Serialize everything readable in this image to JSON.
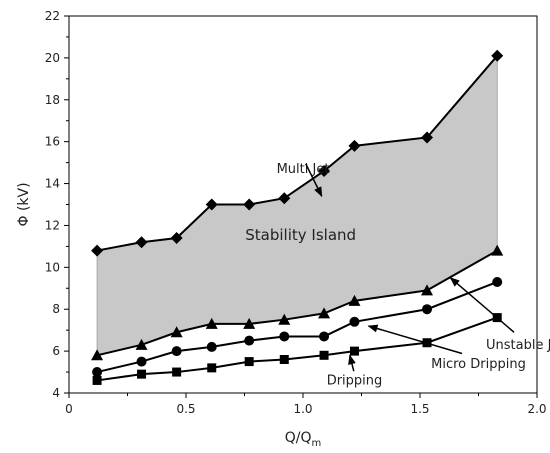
{
  "chart_data": {
    "type": "line",
    "xlabel": "Q/Q",
    "xlabel_sub": "m",
    "ylabel": "Φ (kV)",
    "xlim": [
      0,
      2.0
    ],
    "ylim": [
      4,
      22
    ],
    "x_ticks": [
      0,
      0.5,
      1.0,
      1.5,
      2.0
    ],
    "x_tick_labels": [
      "0",
      "0.5",
      "1.0",
      "1.5",
      "2.0"
    ],
    "y_ticks": [
      4,
      6,
      8,
      10,
      12,
      14,
      16,
      18,
      20,
      22
    ],
    "y_tick_labels": [
      "4",
      "6",
      "8",
      "10",
      "12",
      "14",
      "16",
      "18",
      "20",
      "22"
    ],
    "x": [
      0.12,
      0.31,
      0.46,
      0.61,
      0.77,
      0.92,
      1.09,
      1.22,
      1.53,
      1.83
    ],
    "series": [
      {
        "marker": "diamond",
        "values": [
          10.8,
          11.2,
          11.4,
          13.0,
          13.0,
          13.3,
          14.6,
          15.8,
          16.2,
          20.1
        ]
      },
      {
        "marker": "triangle",
        "values": [
          5.8,
          6.3,
          6.9,
          7.3,
          7.3,
          7.5,
          7.8,
          8.4,
          8.9,
          10.8
        ]
      },
      {
        "marker": "circle",
        "values": [
          5.0,
          5.5,
          6.0,
          6.2,
          6.5,
          6.7,
          6.7,
          7.4,
          8.0,
          9.3
        ]
      },
      {
        "marker": "square",
        "values": [
          4.6,
          4.9,
          5.0,
          5.2,
          5.5,
          5.6,
          5.8,
          6.0,
          6.4,
          7.6
        ]
      }
    ],
    "shaded_region": {
      "label": "Stability Island",
      "color": "#c8c8c8",
      "between": [
        "diamond",
        "triangle"
      ]
    },
    "annotations": [
      {
        "label": "Multi Jet",
        "x": 1.0,
        "y": 14.5,
        "arrow_to": [
          1.08,
          13.4
        ]
      },
      {
        "label": "Unstable Jet",
        "x": 1.95,
        "y": 6.1,
        "arrow_to": [
          1.63,
          9.5
        ]
      },
      {
        "label": "Micro Dripping",
        "x": 1.75,
        "y": 5.2,
        "arrow_to": [
          1.28,
          7.2
        ]
      },
      {
        "label": "Dripping",
        "x": 1.22,
        "y": 4.4,
        "arrow_to": [
          1.2,
          5.8
        ]
      }
    ],
    "grid": false,
    "colors": {
      "line": "#000000",
      "marker": "#000000",
      "fill": "#c8c8c8"
    }
  }
}
